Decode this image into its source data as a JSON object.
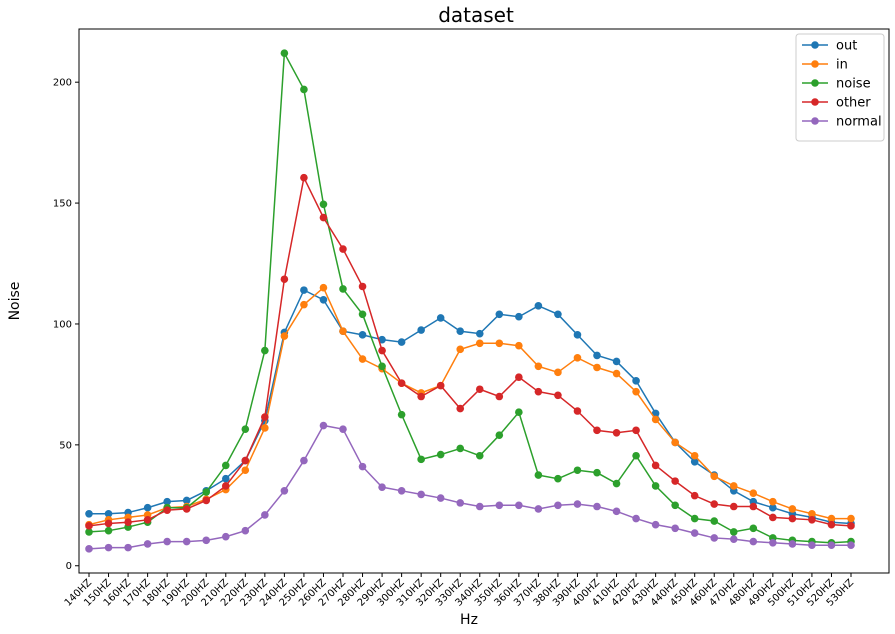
{
  "chart_data": {
    "type": "line",
    "title": "dataset",
    "xlabel": "Hz",
    "ylabel": "Noise",
    "categories": [
      "140HZ",
      "150HZ",
      "160HZ",
      "170HZ",
      "180HZ",
      "190HZ",
      "200HZ",
      "210HZ",
      "220HZ",
      "230HZ",
      "240HZ",
      "250HZ",
      "260HZ",
      "270HZ",
      "280HZ",
      "290HZ",
      "300HZ",
      "310HZ",
      "320HZ",
      "330HZ",
      "340HZ",
      "350HZ",
      "360HZ",
      "370HZ",
      "380HZ",
      "390HZ",
      "400HZ",
      "410HZ",
      "420HZ",
      "430HZ",
      "440HZ",
      "450HZ",
      "460HZ",
      "470HZ",
      "480HZ",
      "490HZ",
      "500HZ",
      "510HZ",
      "520HZ",
      "530HZ"
    ],
    "ylim": [
      -3,
      222
    ],
    "yticks": [
      0,
      50,
      100,
      150,
      200
    ],
    "legend_position": "top-right",
    "grid": false,
    "series": [
      {
        "name": "out",
        "color": "#1f77b4",
        "values": [
          21.5,
          21.5,
          22,
          24,
          26.5,
          27,
          31,
          36,
          43.5,
          60,
          96.5,
          114,
          110,
          97,
          95.5,
          93.5,
          92.5,
          97.5,
          102.5,
          97,
          96,
          104,
          103,
          107.5,
          104,
          95.5,
          87,
          84.5,
          76.5,
          63,
          51,
          43,
          37.5,
          31,
          26.5,
          24,
          21.5,
          20,
          18,
          17.5
        ]
      },
      {
        "name": "in",
        "color": "#ff7f0e",
        "values": [
          17,
          19,
          20,
          21,
          24,
          24.5,
          27.5,
          31.5,
          39.5,
          57,
          95,
          108,
          115,
          97,
          85.5,
          81.5,
          75.5,
          71.5,
          74.5,
          89.5,
          92,
          92,
          91,
          82.5,
          80,
          86,
          82,
          79.5,
          72,
          60.5,
          51,
          45.5,
          37,
          33,
          30,
          26.5,
          23.5,
          21.5,
          19.5,
          19.5
        ]
      },
      {
        "name": "noise",
        "color": "#2ca02c",
        "values": [
          14,
          14.5,
          16,
          18,
          24,
          24,
          30.5,
          41.5,
          56.5,
          89,
          212,
          197,
          149.5,
          114.5,
          104,
          82.5,
          62.5,
          44,
          46,
          48.5,
          45.5,
          54,
          63.5,
          37.5,
          36,
          39.5,
          38.5,
          34,
          45.5,
          33,
          25,
          19.5,
          18.5,
          14,
          15.5,
          11.5,
          10.5,
          10,
          9.5,
          10
        ]
      },
      {
        "name": "other",
        "color": "#d62728",
        "values": [
          16.5,
          17.5,
          18,
          19,
          23,
          23.5,
          27,
          33,
          43.5,
          61.5,
          118.5,
          160.5,
          144,
          131,
          115.5,
          89,
          75.5,
          70,
          74.5,
          65,
          73,
          70,
          78,
          72,
          70.5,
          64,
          56,
          55,
          56,
          41.5,
          35,
          29,
          25.5,
          24.5,
          24.5,
          20,
          19.5,
          19,
          17,
          16.5
        ]
      },
      {
        "name": "normal",
        "color": "#9467bd",
        "values": [
          7,
          7.5,
          7.5,
          9,
          10,
          10,
          10.5,
          12,
          14.5,
          21,
          31,
          43.5,
          58,
          56.5,
          41,
          32.5,
          31,
          29.5,
          28,
          26,
          24.5,
          25,
          25,
          23.5,
          25,
          25.5,
          24.5,
          22.5,
          19.5,
          17,
          15.5,
          13.5,
          11.5,
          11,
          10,
          9.5,
          9,
          8.5,
          8.5,
          8.5
        ]
      }
    ]
  }
}
